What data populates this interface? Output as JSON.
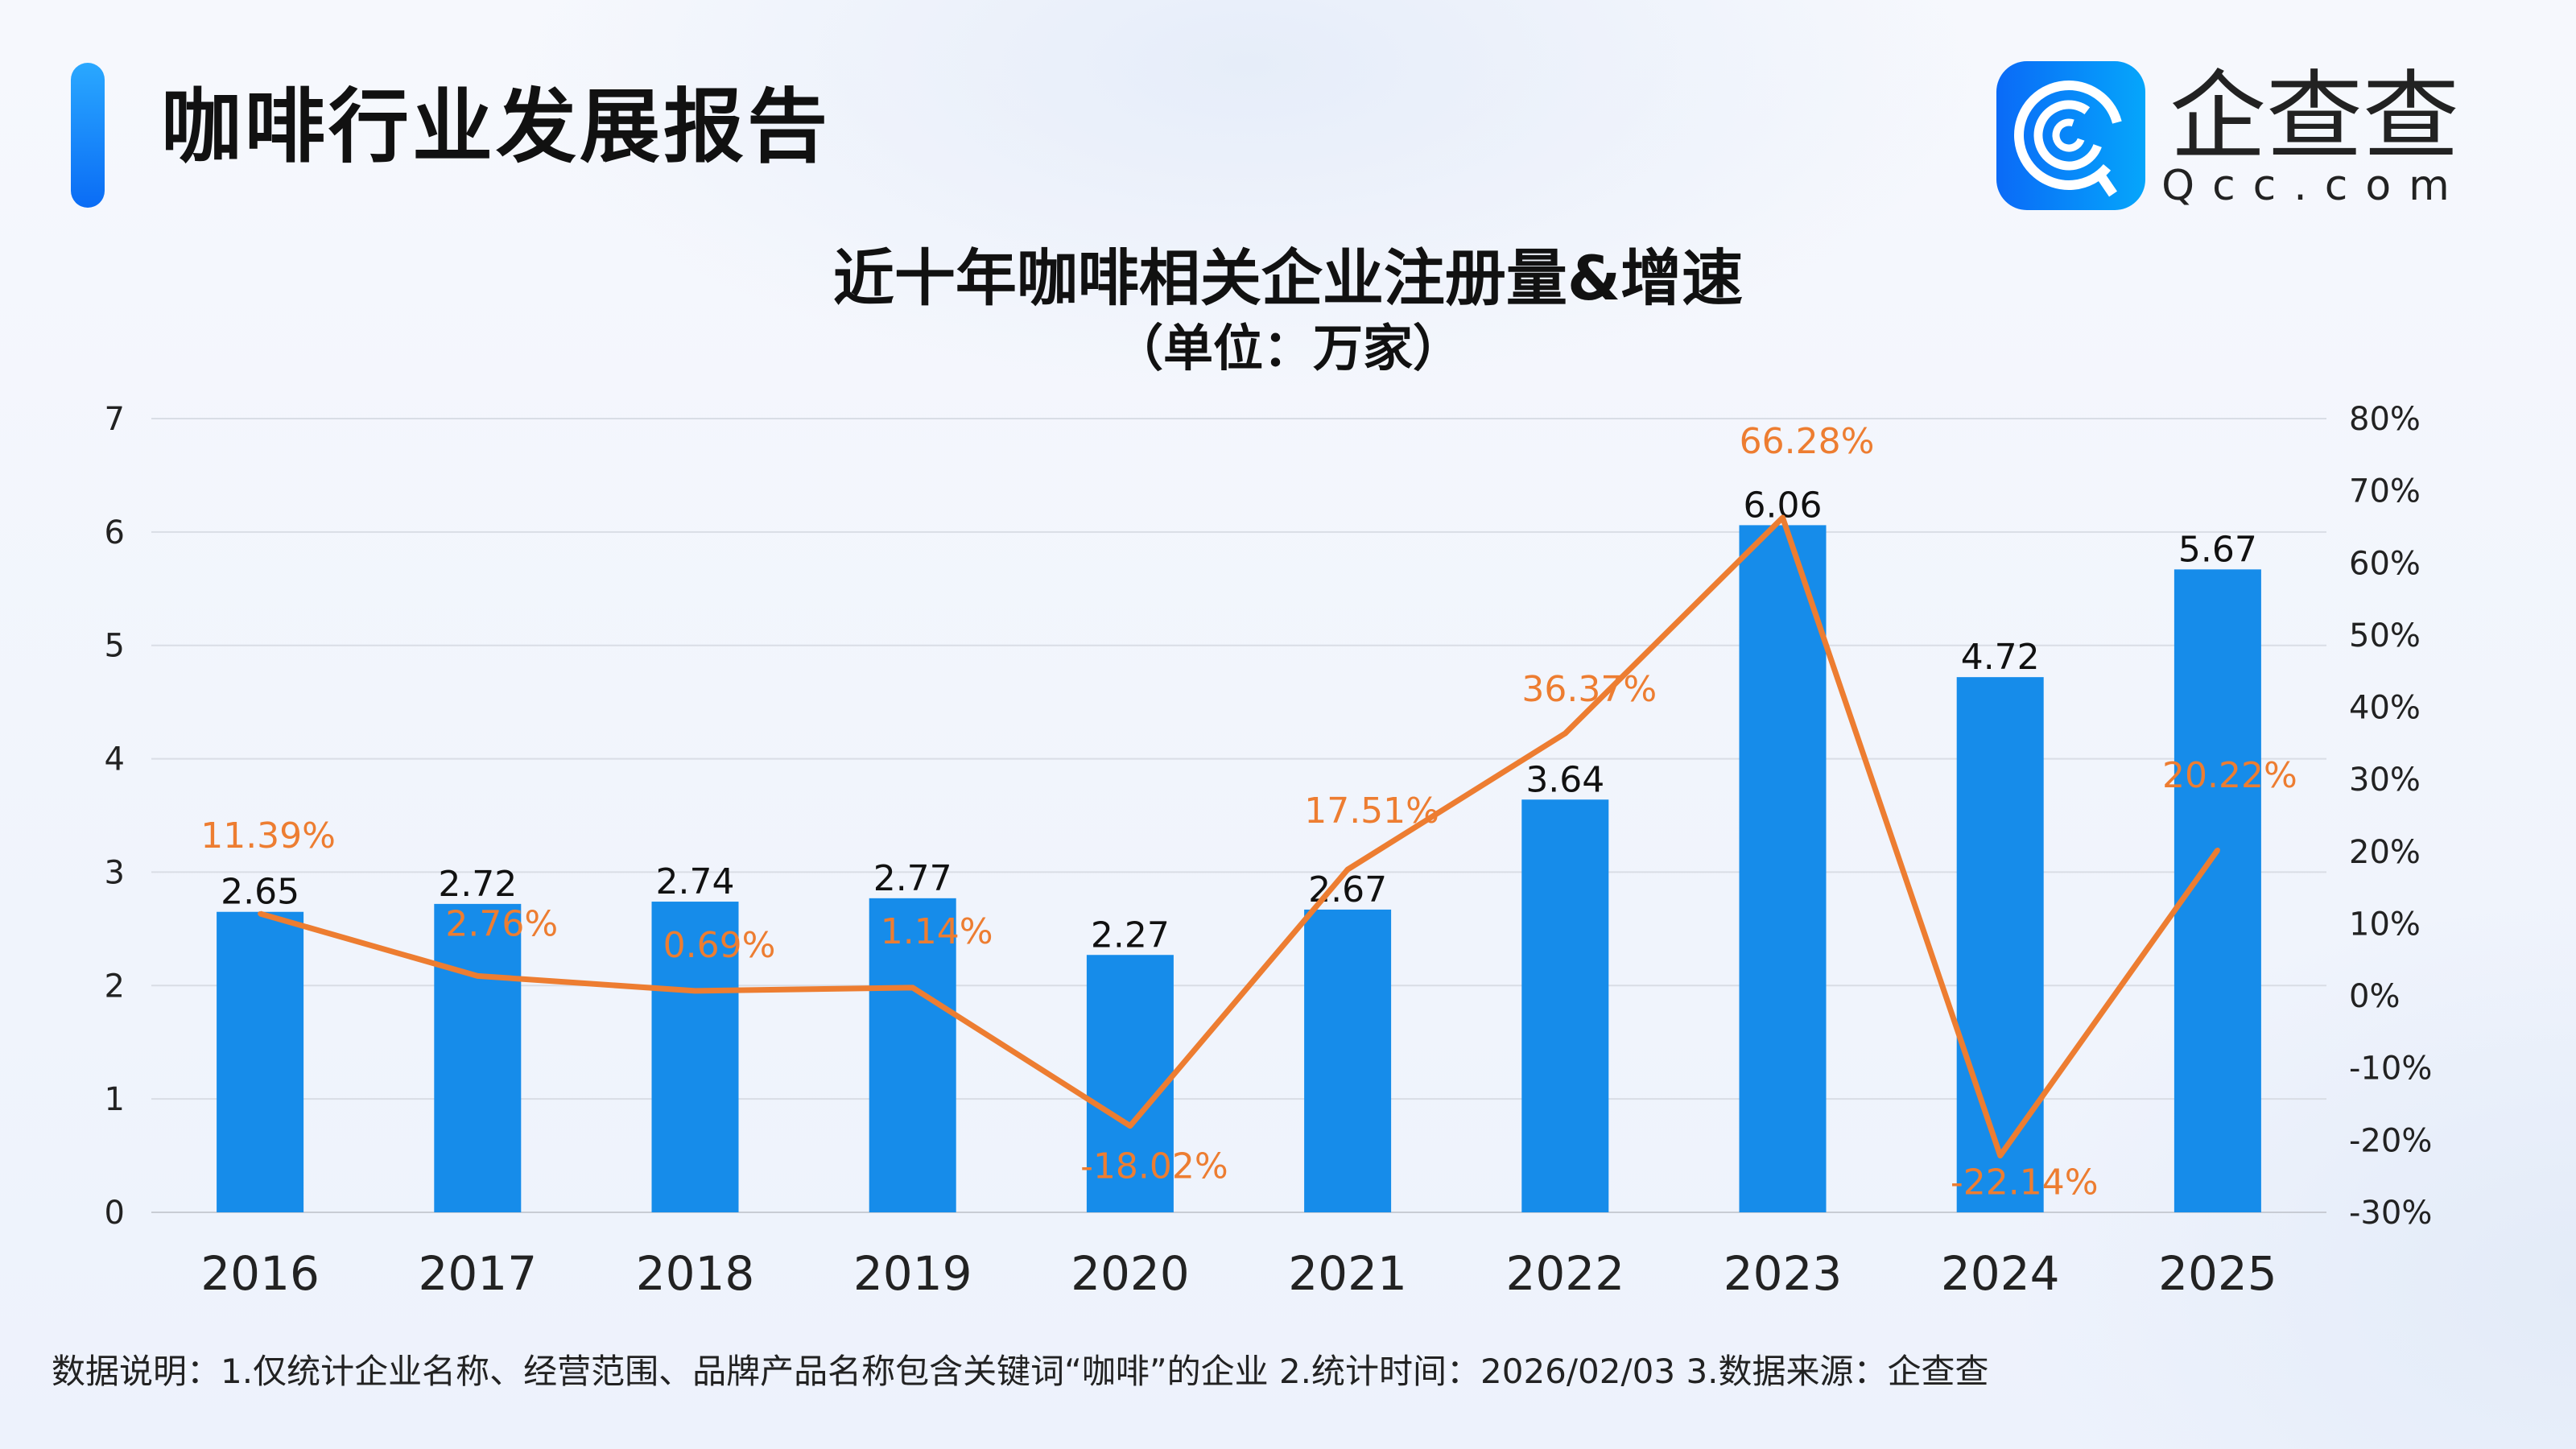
{
  "header": {
    "title": "咖啡行业发展报告",
    "logo_text": "企查查",
    "logo_sub": "Qcc.com"
  },
  "footnote": "数据说明：1.仅统计企业名称、经营范围、品牌产品名称包含关键词“咖啡”的企业   2.统计时间：2026/02/03    3.数据来源：企查查",
  "chart_data": {
    "type": "bar",
    "title": "近十年咖啡相关企业注册量&增速",
    "subtitle": "（单位：万家）",
    "categories": [
      "2016",
      "2017",
      "2018",
      "2019",
      "2020",
      "2021",
      "2022",
      "2023",
      "2024",
      "2025"
    ],
    "series": [
      {
        "type": "bar",
        "axis": "left",
        "color": "#168cea",
        "values": [
          2.65,
          2.72,
          2.74,
          2.77,
          2.27,
          2.67,
          3.64,
          6.06,
          4.72,
          5.67
        ],
        "labels": [
          "2.65",
          "2.72",
          "2.74",
          "2.77",
          "2.27",
          "2.67",
          "3.64",
          "6.06",
          "4.72",
          "5.67"
        ]
      },
      {
        "type": "line",
        "axis": "right",
        "color": "#ed7d31",
        "values": [
          11.39,
          2.76,
          0.69,
          1.14,
          -18.02,
          17.51,
          36.37,
          66.28,
          -22.14,
          20.22
        ],
        "labels": [
          "11.39%",
          "2.76%",
          "0.69%",
          "1.14%",
          "-18.02%",
          "17.51%",
          "36.37%",
          "66.28%",
          "-22.14%",
          "20.22%"
        ]
      }
    ],
    "left_axis": {
      "ylim": [
        0,
        7
      ],
      "ticks": [
        "0",
        "1",
        "2",
        "3",
        "4",
        "5",
        "6",
        "7"
      ]
    },
    "right_axis": {
      "ylim": [
        -30,
        80
      ],
      "ticks": [
        "-30%",
        "-20%",
        "-10%",
        "0%",
        "10%",
        "20%",
        "30%",
        "40%",
        "50%",
        "60%",
        "70%",
        "80%"
      ]
    },
    "grid": true,
    "legend": "none"
  }
}
